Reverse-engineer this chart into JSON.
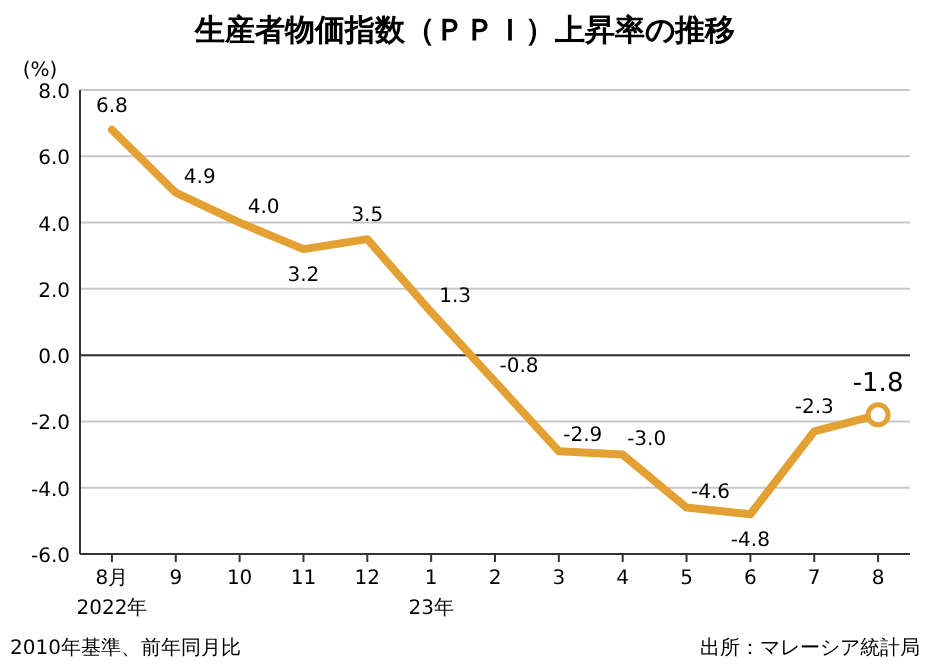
{
  "chart_data": {
    "type": "line",
    "title": "生産者物価指数（ＰＰＩ）上昇率の推移",
    "ylabel": "(%)",
    "categories": [
      "8月",
      "9",
      "10",
      "11",
      "12",
      "1",
      "2",
      "3",
      "4",
      "5",
      "6",
      "7",
      "8"
    ],
    "series": [
      {
        "color": "#e3a033",
        "values": [
          6.8,
          4.9,
          4.0,
          3.2,
          3.5,
          1.3,
          -0.8,
          -2.9,
          -3.0,
          -4.6,
          -4.8,
          -2.3,
          -1.8
        ],
        "value_labels": [
          "6.8",
          "4.9",
          "4.0",
          "3.2",
          "3.5",
          "1.3",
          "-0.8",
          "-2.9",
          "-3.0",
          "-4.6",
          "-4.8",
          "-2.3",
          "-1.8"
        ]
      },
      {
        "type": "scatter",
        "marker": "circle",
        "color": "#e3a033",
        "values": [
          null,
          null,
          null,
          null,
          null,
          null,
          null,
          null,
          null,
          null,
          null,
          null,
          -1.8
        ]
      }
    ],
    "grid": "y",
    "marker": "none",
    "line_style": "solid",
    "ylim": [
      -6,
      8
    ],
    "yticks": [
      {
        "value": -6,
        "label": "-6.0"
      },
      {
        "value": -4,
        "label": "-4.0"
      },
      {
        "value": -2,
        "label": "-2.0"
      },
      {
        "value": 0,
        "label": "0.0"
      },
      {
        "value": 2,
        "label": "2.0"
      },
      {
        "value": 4,
        "label": "4.0"
      },
      {
        "value": 6,
        "label": "6.0"
      },
      {
        "value": 8,
        "label": "8.0"
      }
    ],
    "ref_lines": [
      {
        "axis": "y",
        "value": 0,
        "color": "#333333"
      }
    ],
    "annotations": [
      "2022年",
      "23年",
      "2010年基準、前年同月比",
      "出所：マレーシア統計局"
    ]
  }
}
